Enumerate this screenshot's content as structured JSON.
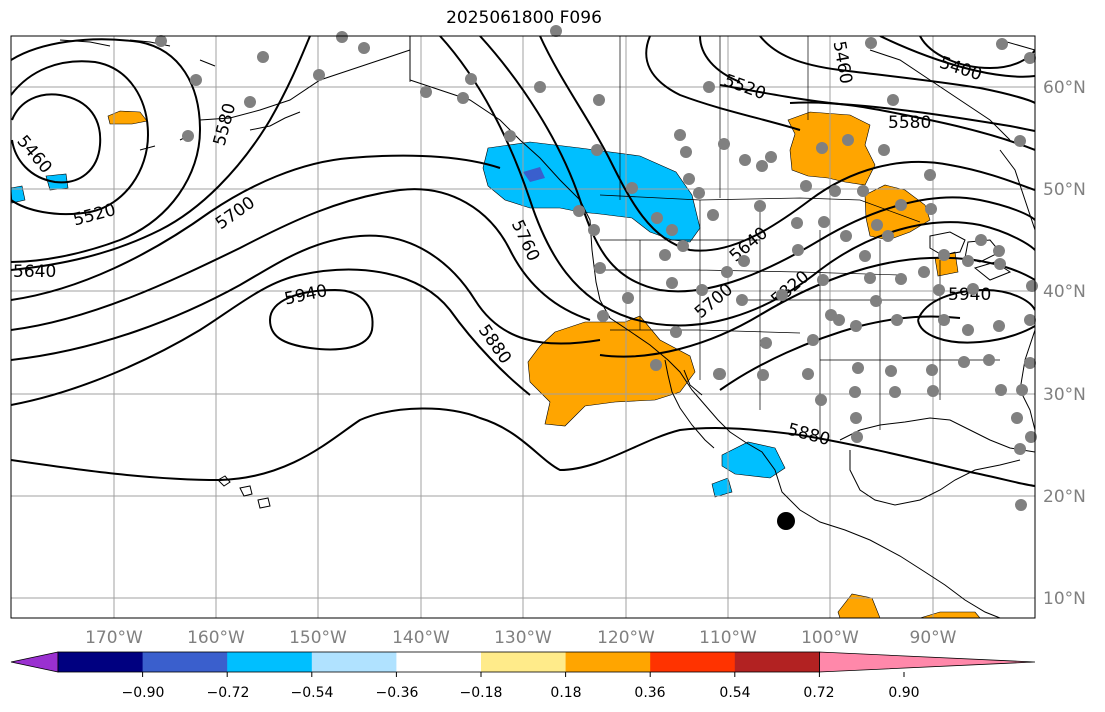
{
  "title": "2025061800 F096",
  "map": {
    "projection": "cylindrical",
    "lon_range": [
      -180,
      -80
    ],
    "lat_range": [
      8,
      65
    ],
    "lon_ticks": [
      "170°W",
      "160°W",
      "150°W",
      "140°W",
      "130°W",
      "120°W",
      "110°W",
      "100°W",
      "90°W"
    ],
    "lat_ticks": [
      "10°N",
      "20°N",
      "30°N",
      "40°N",
      "50°N",
      "60°N"
    ],
    "grid": true,
    "contour_color": "#000000",
    "contour_labels": [
      "5460",
      "5520",
      "5640",
      "5700",
      "5580",
      "5760",
      "5940",
      "5880",
      "5460",
      "5520",
      "5400",
      "5580",
      "5640",
      "5700",
      "5820",
      "5940",
      "5880"
    ],
    "station_marker_color": "#808080",
    "highlight_marker_color": "#000000"
  },
  "colorbar": {
    "ticks": [
      "−0.90",
      "−0.72",
      "−0.54",
      "−0.36",
      "−0.18",
      "0.18",
      "0.36",
      "0.54",
      "0.72",
      "0.90"
    ],
    "colors": [
      "#9a30d0",
      "#000080",
      "#3a5fcd",
      "#00bfff",
      "#b0e2ff",
      "#ffffff",
      "#ffeb8a",
      "#ffa500",
      "#ff3300",
      "#b22222",
      "#ff88aa"
    ],
    "extend": "both"
  }
}
